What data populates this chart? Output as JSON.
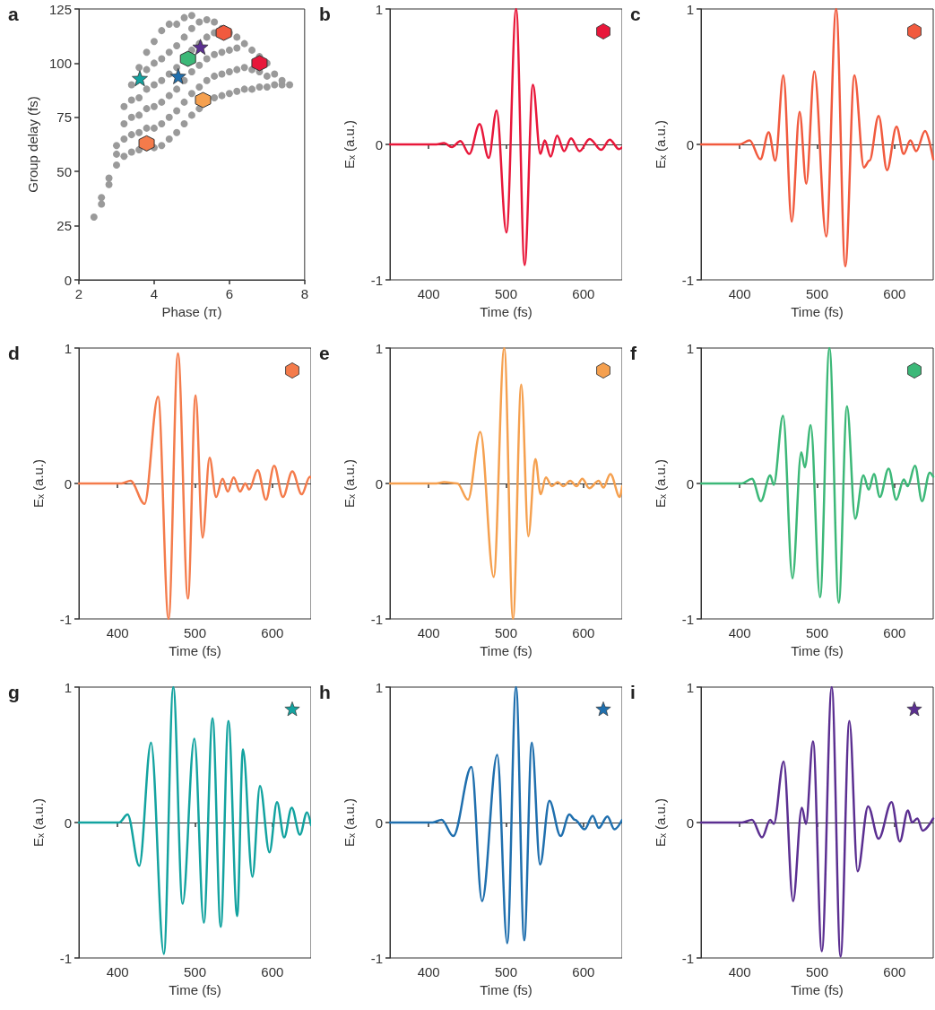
{
  "chart_data": [
    {
      "type": "scatter",
      "title": "a",
      "xlabel": "Phase (π)",
      "ylabel": "Group delay (fs)",
      "xlim": [
        2,
        8
      ],
      "xticks": [
        2,
        4,
        6,
        8
      ],
      "ylim": [
        0,
        125
      ],
      "yticks": [
        0,
        25,
        50,
        75,
        100,
        125
      ],
      "series": [
        {
          "color": "#9a9a9a",
          "marker": "circle",
          "x": [
            2.4,
            2.6,
            2.6,
            2.8,
            2.8,
            3.0,
            3.0,
            3.0,
            3.2,
            3.2,
            3.2,
            3.2,
            3.4,
            3.4,
            3.4,
            3.4,
            3.4,
            3.6,
            3.6,
            3.6,
            3.6,
            3.6,
            3.8,
            3.8,
            3.8,
            3.8,
            3.8,
            3.8,
            4.0,
            4.0,
            4.0,
            4.0,
            4.0,
            4.0,
            4.2,
            4.2,
            4.2,
            4.2,
            4.2,
            4.2,
            4.4,
            4.4,
            4.4,
            4.4,
            4.4,
            4.4,
            4.6,
            4.6,
            4.6,
            4.6,
            4.6,
            4.6,
            4.8,
            4.8,
            4.8,
            4.8,
            4.8,
            5.0,
            5.0,
            5.0,
            5.0,
            5.0,
            5.0,
            5.2,
            5.2,
            5.2,
            5.2,
            5.2,
            5.4,
            5.4,
            5.4,
            5.4,
            5.6,
            5.6,
            5.6,
            5.6,
            5.6,
            5.8,
            5.8,
            5.8,
            5.8,
            6.0,
            6.0,
            6.0,
            6.0,
            6.2,
            6.2,
            6.2,
            6.2,
            6.4,
            6.4,
            6.4,
            6.6,
            6.6,
            6.6,
            6.8,
            6.8,
            6.8,
            7.0,
            7.0,
            7.0,
            7.2,
            7.2,
            7.4,
            7.4,
            7.6
          ],
          "values": [
            29,
            35,
            38,
            44,
            47,
            53,
            58,
            62,
            57,
            65,
            72,
            80,
            59,
            67,
            75,
            83,
            90,
            60,
            68,
            76,
            84,
            98,
            61,
            70,
            79,
            88,
            97,
            105,
            61,
            70,
            80,
            90,
            100,
            110,
            62,
            72,
            82,
            92,
            102,
            115,
            65,
            75,
            85,
            95,
            105,
            118,
            68,
            78,
            88,
            98,
            108,
            118,
            72,
            82,
            92,
            112,
            121,
            76,
            86,
            96,
            106,
            116,
            122,
            79,
            89,
            99,
            109,
            119,
            92,
            102,
            112,
            120,
            84,
            94,
            104,
            114,
            119,
            85,
            95,
            105,
            116,
            86,
            96,
            106,
            114,
            87,
            97,
            107,
            112,
            88,
            98,
            109,
            88,
            97,
            106,
            89,
            96,
            103,
            89,
            94,
            100,
            90,
            95,
            90,
            92,
            90
          ]
        },
        {
          "color": "#e8173a",
          "x": [
            6.8
          ],
          "values": [
            100
          ]
        },
        {
          "color": "#f15a3e",
          "x": [
            5.85
          ],
          "values": [
            114
          ]
        },
        {
          "color": "#f47b4b",
          "x": [
            3.8
          ],
          "values": [
            63
          ]
        },
        {
          "color": "#f5a04f",
          "x": [
            5.3
          ],
          "values": [
            83
          ]
        },
        {
          "color": "#3cb878",
          "x": [
            4.9
          ],
          "values": [
            102
          ]
        },
        {
          "color": "#13a3a0",
          "marker": "star",
          "x": [
            3.62
          ],
          "values": [
            93
          ]
        },
        {
          "color": "#1f6fae",
          "marker": "star",
          "x": [
            4.64
          ],
          "values": [
            94
          ]
        },
        {
          "color": "#5b2f91",
          "marker": "star",
          "x": [
            5.23
          ],
          "values": [
            107.5
          ]
        }
      ]
    },
    {
      "type": "line",
      "title": "b",
      "xlabel": "Time (fs)",
      "ylabel": "Eₓ (a.u.)",
      "xlim": [
        350,
        650
      ],
      "xticks": [
        400,
        500,
        600
      ],
      "ylim": [
        -1,
        1
      ],
      "yticks": [
        -1,
        0,
        1
      ],
      "color": "#e8173a",
      "x": [
        350,
        410,
        420,
        430,
        441,
        452.5,
        465.8,
        477.6,
        487.8,
        500.5,
        513,
        524,
        534.7,
        544.4,
        550,
        557.6,
        566,
        575,
        584,
        595,
        608,
        623,
        634,
        646,
        650
      ],
      "values": [
        0,
        0,
        0.01,
        -0.02,
        0.025,
        -0.07,
        0.15,
        -0.1,
        0.25,
        -0.65,
        1,
        -0.89,
        0.44,
        -0.07,
        0.03,
        -0.09,
        0.065,
        -0.05,
        0.045,
        -0.05,
        0.04,
        -0.04,
        0.035,
        -0.035,
        -0.02
      ]
    },
    {
      "type": "line",
      "title": "c",
      "xlabel": "Time (fs)",
      "ylabel": "Eₓ (a.u.)",
      "xlim": [
        350,
        650
      ],
      "xticks": [
        400,
        500,
        600
      ],
      "ylim": [
        -1,
        1
      ],
      "yticks": [
        -1,
        0,
        1
      ],
      "color": "#f15a3e",
      "x": [
        350,
        400,
        412.8,
        426.7,
        437.4,
        446,
        456.4,
        467.2,
        477.4,
        486,
        496.4,
        511.8,
        524.6,
        536.4,
        548.2,
        560.5,
        567.7,
        579.5,
        590.3,
        602.6,
        611.8,
        620.5,
        628,
        639.5,
        650
      ],
      "values": [
        0,
        0,
        0.03,
        -0.11,
        0.09,
        -0.12,
        0.51,
        -0.57,
        0.24,
        -0.29,
        0.54,
        -0.68,
        1,
        -0.9,
        0.51,
        -0.17,
        -0.12,
        0.21,
        -0.19,
        0.13,
        -0.07,
        0.03,
        -0.05,
        0.1,
        -0.11
      ]
    },
    {
      "type": "line",
      "title": "d",
      "xlabel": "Time (fs)",
      "ylabel": "Eₓ (a.u.)",
      "xlim": [
        350,
        650
      ],
      "xticks": [
        400,
        500,
        600
      ],
      "ylim": [
        -1,
        1
      ],
      "yticks": [
        -1,
        0,
        1
      ],
      "color": "#f47b4b",
      "x": [
        350,
        405,
        416.7,
        434.8,
        452.3,
        465.9,
        478,
        490.9,
        500.8,
        509.8,
        518.9,
        527.3,
        535.6,
        542.4,
        550,
        558.3,
        565,
        570,
        581,
        591.7,
        602.3,
        613.6,
        625.8,
        637.9,
        648.5,
        650
      ],
      "values": [
        0,
        0,
        0.02,
        -0.15,
        0.64,
        -1,
        0.96,
        -0.85,
        0.65,
        -0.4,
        0.19,
        -0.1,
        0.035,
        -0.06,
        0.045,
        -0.06,
        0,
        -0.045,
        0.1,
        -0.12,
        0.13,
        -0.1,
        0.09,
        -0.08,
        0.05,
        0.04
      ]
    },
    {
      "type": "line",
      "title": "e",
      "xlabel": "Time (fs)",
      "ylabel": "Eₓ (a.u.)",
      "xlim": [
        350,
        650
      ],
      "xticks": [
        400,
        500,
        600
      ],
      "ylim": [
        -1,
        1
      ],
      "yticks": [
        -1,
        0,
        1
      ],
      "color": "#f5a04f",
      "x": [
        350,
        410,
        420,
        437,
        450.8,
        466.7,
        484,
        497.7,
        509,
        519.7,
        528.8,
        537.9,
        544.7,
        551.5,
        559,
        566.7,
        574,
        583,
        591,
        598.5,
        607.6,
        619.7,
        625.8,
        634.8,
        647,
        650
      ],
      "values": [
        0,
        0,
        0.01,
        0,
        -0.12,
        0.38,
        -0.69,
        1,
        -1,
        0.73,
        -0.39,
        0.18,
        -0.08,
        0.045,
        -0.02,
        0.01,
        -0.02,
        0.02,
        -0.02,
        0.035,
        -0.035,
        0.02,
        -0.03,
        0.07,
        -0.1,
        -0.02
      ]
    },
    {
      "type": "line",
      "title": "f",
      "xlabel": "Time (fs)",
      "ylabel": "Eₓ (a.u.)",
      "xlim": [
        350,
        650
      ],
      "xticks": [
        400,
        500,
        600
      ],
      "ylim": [
        -1,
        1
      ],
      "yticks": [
        -1,
        0,
        1
      ],
      "color": "#3cb878",
      "x": [
        350,
        403,
        415.9,
        427.3,
        439.4,
        443.9,
        456,
        468.2,
        479.5,
        484.1,
        491.7,
        503.8,
        515.9,
        528,
        538.6,
        549.2,
        559.8,
        566.7,
        573.5,
        581,
        592.4,
        602.3,
        612,
        617,
        626.5,
        635.6,
        645.5,
        650
      ],
      "values": [
        0,
        0,
        0.035,
        -0.13,
        0.06,
        -0.01,
        0.5,
        -0.7,
        0.23,
        0.12,
        0.43,
        -0.84,
        1,
        -0.88,
        0.57,
        -0.26,
        0.06,
        -0.045,
        0.07,
        -0.1,
        0.11,
        -0.12,
        0.03,
        -0.02,
        0.13,
        -0.13,
        0.08,
        0.05
      ]
    },
    {
      "type": "line",
      "title": "g",
      "xlabel": "Time (fs)",
      "ylabel": "Eₓ (a.u.)",
      "xlim": [
        350,
        650
      ],
      "xticks": [
        400,
        500,
        600
      ],
      "ylim": [
        -1,
        1
      ],
      "yticks": [
        -1,
        0,
        1
      ],
      "color": "#13a3a0",
      "x": [
        350,
        402,
        412.9,
        428,
        443.2,
        459.8,
        472,
        484,
        499.2,
        511.4,
        522.7,
        533.3,
        543.2,
        554.5,
        562,
        574.2,
        584,
        596.2,
        606,
        615.2,
        625,
        635.6,
        644.7,
        650
      ],
      "values": [
        0,
        0,
        0.06,
        -0.32,
        0.59,
        -0.97,
        1,
        -0.6,
        0.62,
        -0.74,
        0.77,
        -0.77,
        0.75,
        -0.69,
        0.54,
        -0.4,
        0.27,
        -0.22,
        0.15,
        -0.11,
        0.11,
        -0.09,
        0.075,
        -0.02
      ]
    },
    {
      "type": "line",
      "title": "h",
      "xlabel": "Time (fs)",
      "ylabel": "Eₓ (a.u.)",
      "xlim": [
        350,
        650
      ],
      "xticks": [
        400,
        500,
        600
      ],
      "ylim": [
        -1,
        1
      ],
      "yticks": [
        -1,
        0,
        1
      ],
      "color": "#1f6fae",
      "x": [
        350,
        405,
        416.7,
        431.8,
        455.3,
        469,
        488.6,
        501.5,
        512.9,
        523.5,
        533.3,
        544,
        556,
        570.5,
        581.8,
        589,
        601.5,
        612,
        619.7,
        631,
        640,
        650
      ],
      "values": [
        0,
        0,
        0.02,
        -0.1,
        0.41,
        -0.58,
        0.5,
        -0.89,
        1,
        -0.87,
        0.59,
        -0.31,
        0.16,
        -0.1,
        0.06,
        0.02,
        -0.05,
        0.05,
        -0.04,
        0.045,
        -0.05,
        0.02
      ]
    },
    {
      "type": "line",
      "title": "i",
      "xlabel": "Time (fs)",
      "ylabel": "Eₓ (a.u.)",
      "xlim": [
        350,
        650
      ],
      "xticks": [
        400,
        500,
        600
      ],
      "ylim": [
        -1,
        1
      ],
      "yticks": [
        -1,
        0,
        1
      ],
      "color": "#5b2f91",
      "x": [
        350,
        403,
        415.9,
        428.8,
        439.4,
        444,
        456.8,
        468.9,
        480.3,
        485.6,
        494.7,
        506.1,
        518.9,
        530.3,
        541.7,
        552.3,
        565.9,
        579.5,
        596.2,
        606.8,
        617.4,
        622.7,
        629.5,
        636.4,
        650
      ],
      "values": [
        0,
        0,
        0.02,
        -0.11,
        0.02,
        -0.01,
        0.45,
        -0.58,
        0.11,
        -0.01,
        0.6,
        -0.95,
        1,
        -0.99,
        0.75,
        -0.36,
        0.12,
        -0.12,
        0.15,
        -0.14,
        0.09,
        0,
        0.03,
        -0.06,
        0.03
      ]
    }
  ]
}
